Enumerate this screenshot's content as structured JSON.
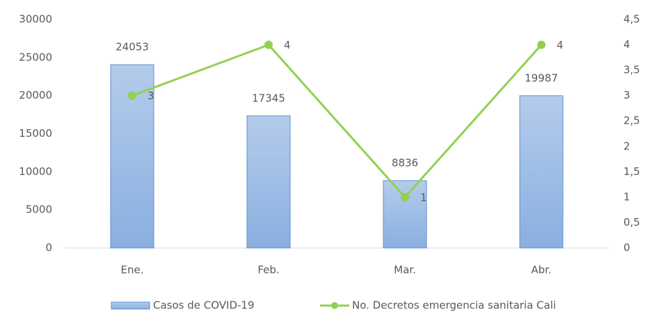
{
  "chart_data": {
    "type": "bar",
    "categories": [
      "Ene.",
      "Feb.",
      "Mar.",
      "Abr."
    ],
    "series": [
      {
        "name": "Casos de COVID-19",
        "type": "bar",
        "color": "#9dbce4",
        "values": [
          24053,
          17345,
          8836,
          19987
        ]
      },
      {
        "name": "No. Decretos emergencia sanitaria Cali",
        "type": "line",
        "axis": "y2",
        "color": "#92d050",
        "values": [
          3,
          4,
          1,
          4
        ]
      }
    ],
    "ylim": [
      0,
      30000
    ],
    "yticks": [
      0,
      5000,
      10000,
      15000,
      20000,
      25000,
      30000
    ],
    "y2lim": [
      0,
      4.5
    ],
    "y2ticks": [
      0,
      {
        "value": 0.5,
        "label": "0,5"
      },
      1,
      {
        "value": 1.5,
        "label": "1,5"
      },
      2,
      {
        "value": 2.5,
        "label": "2,5"
      },
      3,
      {
        "value": 3.5,
        "label": "3,5"
      },
      4,
      {
        "value": 4.5,
        "label": "4,5"
      }
    ],
    "grid": false,
    "legend": "bottom"
  }
}
